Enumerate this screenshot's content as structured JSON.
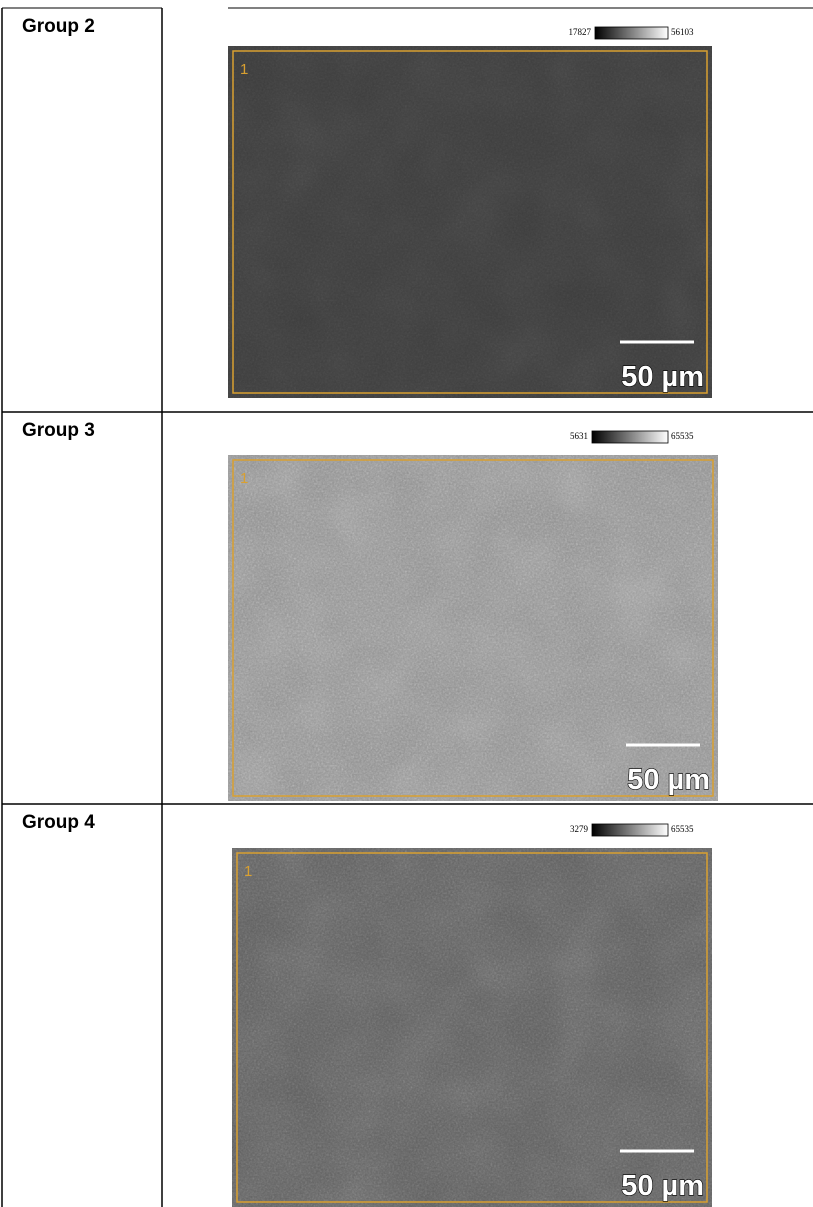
{
  "table": {
    "rows": [
      {
        "label": "Group 2",
        "colorbar_min": 17827,
        "colorbar_max": 56103,
        "roi": "1",
        "scale": "50 µm"
      },
      {
        "label": "Group 3",
        "colorbar_min": 5631,
        "colorbar_max": 65535,
        "roi": "1",
        "scale": "50 µm"
      },
      {
        "label": "Group 4",
        "colorbar_min": 3279,
        "colorbar_max": 65535,
        "roi": "1",
        "scale": "50 µm"
      }
    ]
  }
}
